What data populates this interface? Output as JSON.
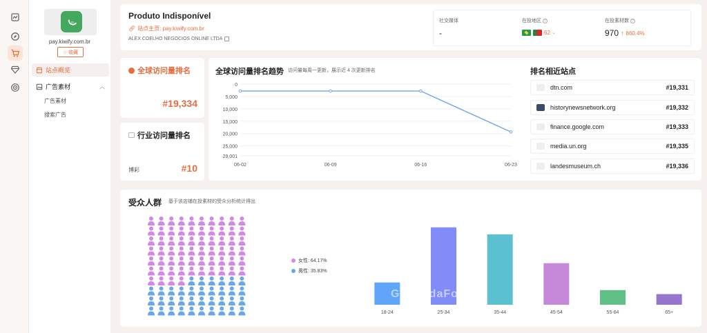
{
  "rail": {
    "icons": [
      "dashboard-icon",
      "compass-icon",
      "cart-icon",
      "gem-icon",
      "target-icon"
    ],
    "active_index": 2
  },
  "sidebar": {
    "domain": "pay.kiwify.com.br",
    "favorite_label": "收藏",
    "nav": [
      {
        "label": "站点概览",
        "active": true
      },
      {
        "label": "广告素材",
        "active": false
      }
    ],
    "sub_items": [
      "广告素材",
      "搜索广告"
    ]
  },
  "header": {
    "title": "Produto Indisponível",
    "homepage_label": "站点主页: pay.kiwify.com.br",
    "company": "ALEX COELHO NEGOCIOS ONLINE LTDA",
    "stats": {
      "social_label": "社交媒体",
      "social_value": "-",
      "region_label": "在投地区",
      "region_count": "62",
      "ads_label": "在投素材数",
      "ads_value": "970",
      "ads_change": "860.4%"
    }
  },
  "global_rank": {
    "label": "全球访问量排名",
    "value": "#19,334"
  },
  "industry_rank": {
    "label": "行业访问量排名",
    "category": "博彩",
    "value": "#10"
  },
  "trend": {
    "title": "全球访问量排名趋势",
    "subtitle": "访问量每周一更新，展示近 4 次更新排名",
    "color": "#6aa6ea"
  },
  "chart_data": [
    {
      "type": "line",
      "title": "全球访问量排名趋势",
      "x": [
        "06-02",
        "06-09",
        "06-16",
        "06-23"
      ],
      "series": [
        {
          "values": [
            2800,
            2800,
            2800,
            19334
          ]
        }
      ],
      "yticks": [
        0,
        5000,
        10000,
        15000,
        20000,
        25000,
        29001
      ],
      "ytick_labels": [
        "0",
        "5,000",
        "10,000",
        "15,000",
        "20,000",
        "25,000",
        "29,001"
      ],
      "ylim": [
        0,
        29001
      ],
      "y_inverted": true,
      "grid": true
    },
    {
      "type": "bar",
      "categories": [
        "18-24",
        "25-34",
        "35-44",
        "45-54",
        "55-64",
        "65+"
      ],
      "values": [
        10.5,
        36.5,
        33.2,
        19.6,
        6.9,
        5.0
      ],
      "colors": [
        "#60a5fa",
        "#818cf8",
        "#5bc0d0",
        "#c688d8",
        "#5fbf85",
        "#9575cd"
      ],
      "ylim": [
        0,
        40
      ]
    }
  ],
  "similar_sites": {
    "title": "排名相近站点",
    "items": [
      {
        "name": "dtn.com",
        "rank": "#19,331"
      },
      {
        "name": "historynewsnetwork.org",
        "rank": "#19,332"
      },
      {
        "name": "finance.google.com",
        "rank": "#19,333"
      },
      {
        "name": "media.un.org",
        "rank": "#19,335"
      },
      {
        "name": "landesmuseum.ch",
        "rank": "#19,336"
      }
    ]
  },
  "audience": {
    "title": "受众人群",
    "subtitle": "基于该店铺在投素材的受众分析统计得出",
    "female_label": "女性: 64.17%",
    "male_label": "男性: 35.83%",
    "female_share": 0.64,
    "female_color": "#d189e6",
    "male_color": "#6aa6ea",
    "watermark": "GuangdaFox"
  }
}
